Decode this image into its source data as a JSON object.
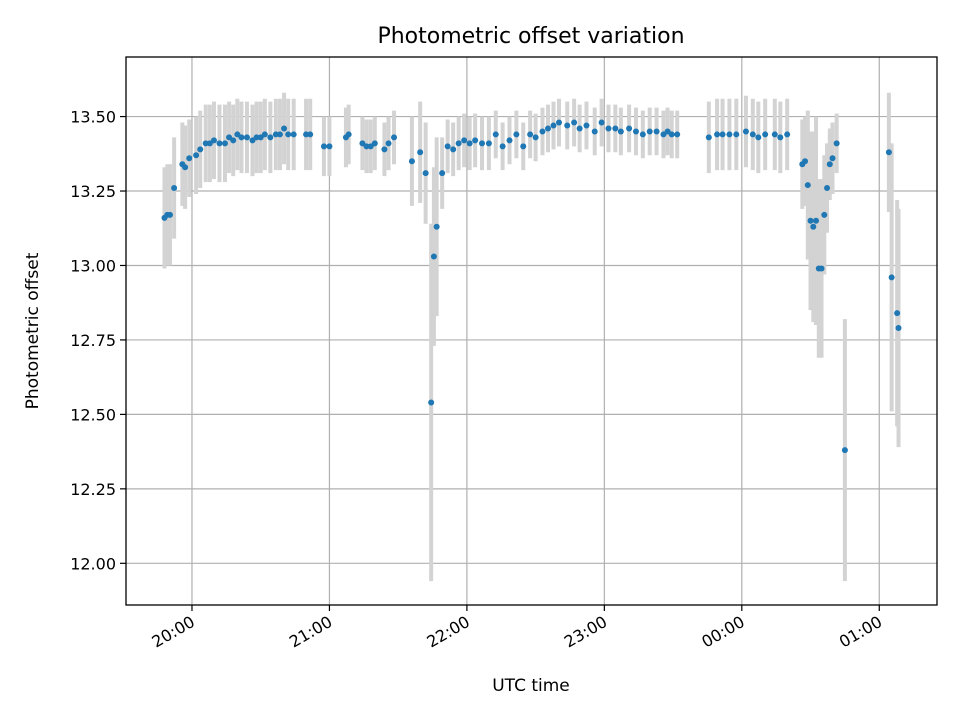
{
  "colors": {
    "marker": "#1f77b4",
    "errorbar": "#d3d3d3",
    "grid": "#b0b0b0",
    "axes": "#000000",
    "background": "#ffffff"
  },
  "chart_data": {
    "type": "scatter",
    "title": "Photometric offset variation",
    "xlabel": "UTC time",
    "ylabel": "Photometric offset",
    "x_unit": "hours (UTC; values past 24 are after midnight)",
    "xlim": [
      19.52,
      25.42
    ],
    "ylim": [
      11.86,
      13.7
    ],
    "grid": true,
    "x_tick_values": [
      20,
      21,
      22,
      23,
      24,
      25
    ],
    "x_tick_labels": [
      "20:00",
      "21:00",
      "22:00",
      "23:00",
      "00:00",
      "01:00"
    ],
    "y_tick_values": [
      12.0,
      12.25,
      12.5,
      12.75,
      13.0,
      13.25,
      13.5
    ],
    "y_tick_labels": [
      "12.00",
      "12.25",
      "12.50",
      "12.75",
      "13.00",
      "13.25",
      "13.50"
    ],
    "series": [
      {
        "marker": "point-with-errorbar",
        "x": [
          19.8,
          19.82,
          19.84,
          19.87,
          19.93,
          19.95,
          19.98,
          20.03,
          20.06,
          20.1,
          20.13,
          20.16,
          20.2,
          20.24,
          20.27,
          20.3,
          20.33,
          20.36,
          20.4,
          20.44,
          20.47,
          20.5,
          20.53,
          20.57,
          20.61,
          20.64,
          20.67,
          20.7,
          20.74,
          20.83,
          20.86,
          20.96,
          21.0,
          21.12,
          21.14,
          21.24,
          21.27,
          21.3,
          21.33,
          21.4,
          21.43,
          21.47,
          21.6,
          21.66,
          21.7,
          21.74,
          21.76,
          21.78,
          21.82,
          21.86,
          21.9,
          21.94,
          21.98,
          22.02,
          22.06,
          22.11,
          22.16,
          22.21,
          22.26,
          22.31,
          22.36,
          22.41,
          22.46,
          22.5,
          22.55,
          22.59,
          22.63,
          22.67,
          22.73,
          22.78,
          22.82,
          22.87,
          22.93,
          22.98,
          23.03,
          23.08,
          23.12,
          23.18,
          23.23,
          23.28,
          23.33,
          23.38,
          23.43,
          23.46,
          23.49,
          23.53,
          23.76,
          23.82,
          23.86,
          23.91,
          23.96,
          24.03,
          24.08,
          24.12,
          24.17,
          24.24,
          24.28,
          24.33,
          24.44,
          24.46,
          24.48,
          24.5,
          24.52,
          24.54,
          24.56,
          24.58,
          24.6,
          24.62,
          24.64,
          24.66,
          24.69,
          24.75,
          25.07,
          25.09,
          25.13,
          25.14
        ],
        "y": [
          13.16,
          13.17,
          13.17,
          13.26,
          13.34,
          13.33,
          13.36,
          13.37,
          13.39,
          13.41,
          13.41,
          13.42,
          13.41,
          13.41,
          13.43,
          13.42,
          13.44,
          13.43,
          13.43,
          13.42,
          13.43,
          13.43,
          13.44,
          13.43,
          13.44,
          13.44,
          13.46,
          13.44,
          13.44,
          13.44,
          13.44,
          13.4,
          13.4,
          13.43,
          13.44,
          13.41,
          13.4,
          13.4,
          13.41,
          13.39,
          13.41,
          13.43,
          13.35,
          13.38,
          13.31,
          12.54,
          13.03,
          13.13,
          13.31,
          13.4,
          13.39,
          13.41,
          13.42,
          13.41,
          13.42,
          13.41,
          13.41,
          13.44,
          13.4,
          13.42,
          13.44,
          13.4,
          13.44,
          13.43,
          13.45,
          13.46,
          13.47,
          13.48,
          13.47,
          13.48,
          13.46,
          13.47,
          13.45,
          13.48,
          13.46,
          13.46,
          13.45,
          13.46,
          13.45,
          13.44,
          13.45,
          13.45,
          13.44,
          13.45,
          13.44,
          13.44,
          13.43,
          13.44,
          13.44,
          13.44,
          13.44,
          13.45,
          13.44,
          13.43,
          13.44,
          13.44,
          13.43,
          13.44,
          13.34,
          13.35,
          13.27,
          13.15,
          13.13,
          13.15,
          12.99,
          12.99,
          13.17,
          13.26,
          13.34,
          13.36,
          13.41,
          12.38,
          13.38,
          12.96,
          12.84,
          12.79
        ],
        "yerr": [
          0.17,
          0.17,
          0.17,
          0.17,
          0.14,
          0.14,
          0.13,
          0.13,
          0.13,
          0.13,
          0.13,
          0.13,
          0.13,
          0.13,
          0.12,
          0.12,
          0.12,
          0.12,
          0.12,
          0.12,
          0.12,
          0.12,
          0.12,
          0.12,
          0.12,
          0.12,
          0.12,
          0.12,
          0.12,
          0.12,
          0.12,
          0.1,
          0.1,
          0.1,
          0.1,
          0.09,
          0.09,
          0.09,
          0.09,
          0.09,
          0.09,
          0.09,
          0.15,
          0.17,
          0.17,
          0.6,
          0.3,
          0.3,
          0.12,
          0.09,
          0.09,
          0.09,
          0.09,
          0.09,
          0.09,
          0.09,
          0.09,
          0.08,
          0.08,
          0.08,
          0.08,
          0.08,
          0.08,
          0.08,
          0.08,
          0.08,
          0.08,
          0.08,
          0.08,
          0.08,
          0.08,
          0.08,
          0.08,
          0.08,
          0.08,
          0.08,
          0.08,
          0.08,
          0.08,
          0.08,
          0.08,
          0.08,
          0.08,
          0.08,
          0.08,
          0.08,
          0.12,
          0.12,
          0.12,
          0.12,
          0.12,
          0.12,
          0.12,
          0.12,
          0.12,
          0.12,
          0.12,
          0.12,
          0.15,
          0.15,
          0.25,
          0.3,
          0.32,
          0.35,
          0.3,
          0.3,
          0.2,
          0.15,
          0.12,
          0.12,
          0.1,
          0.44,
          0.2,
          0.45,
          0.38,
          0.4
        ]
      }
    ]
  }
}
